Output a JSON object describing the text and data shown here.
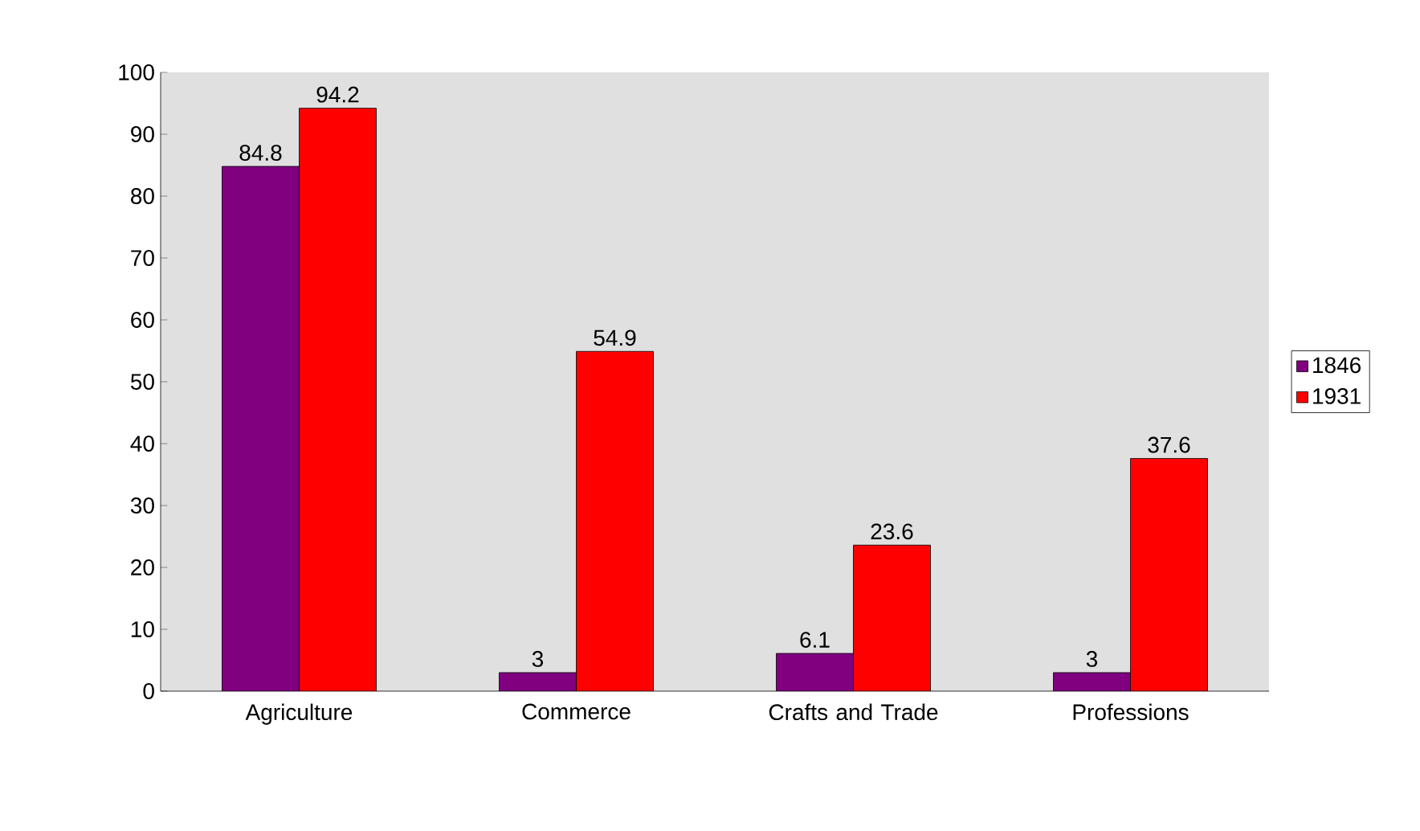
{
  "chart_data": {
    "type": "bar",
    "categories": [
      "Agriculture",
      "Commerce",
      "Crafts and Trade",
      "Professions"
    ],
    "series": [
      {
        "name": "1846",
        "color": "#800080",
        "values": [
          84.8,
          3,
          6.1,
          3
        ]
      },
      {
        "name": "1931",
        "color": "#ff0000",
        "values": [
          94.2,
          54.9,
          23.6,
          37.6
        ]
      }
    ],
    "ylim": [
      0,
      100
    ],
    "yticks": [
      0,
      10,
      20,
      30,
      40,
      50,
      60,
      70,
      80,
      90,
      100
    ],
    "data_labels": true,
    "legend": "right",
    "grid": false
  }
}
